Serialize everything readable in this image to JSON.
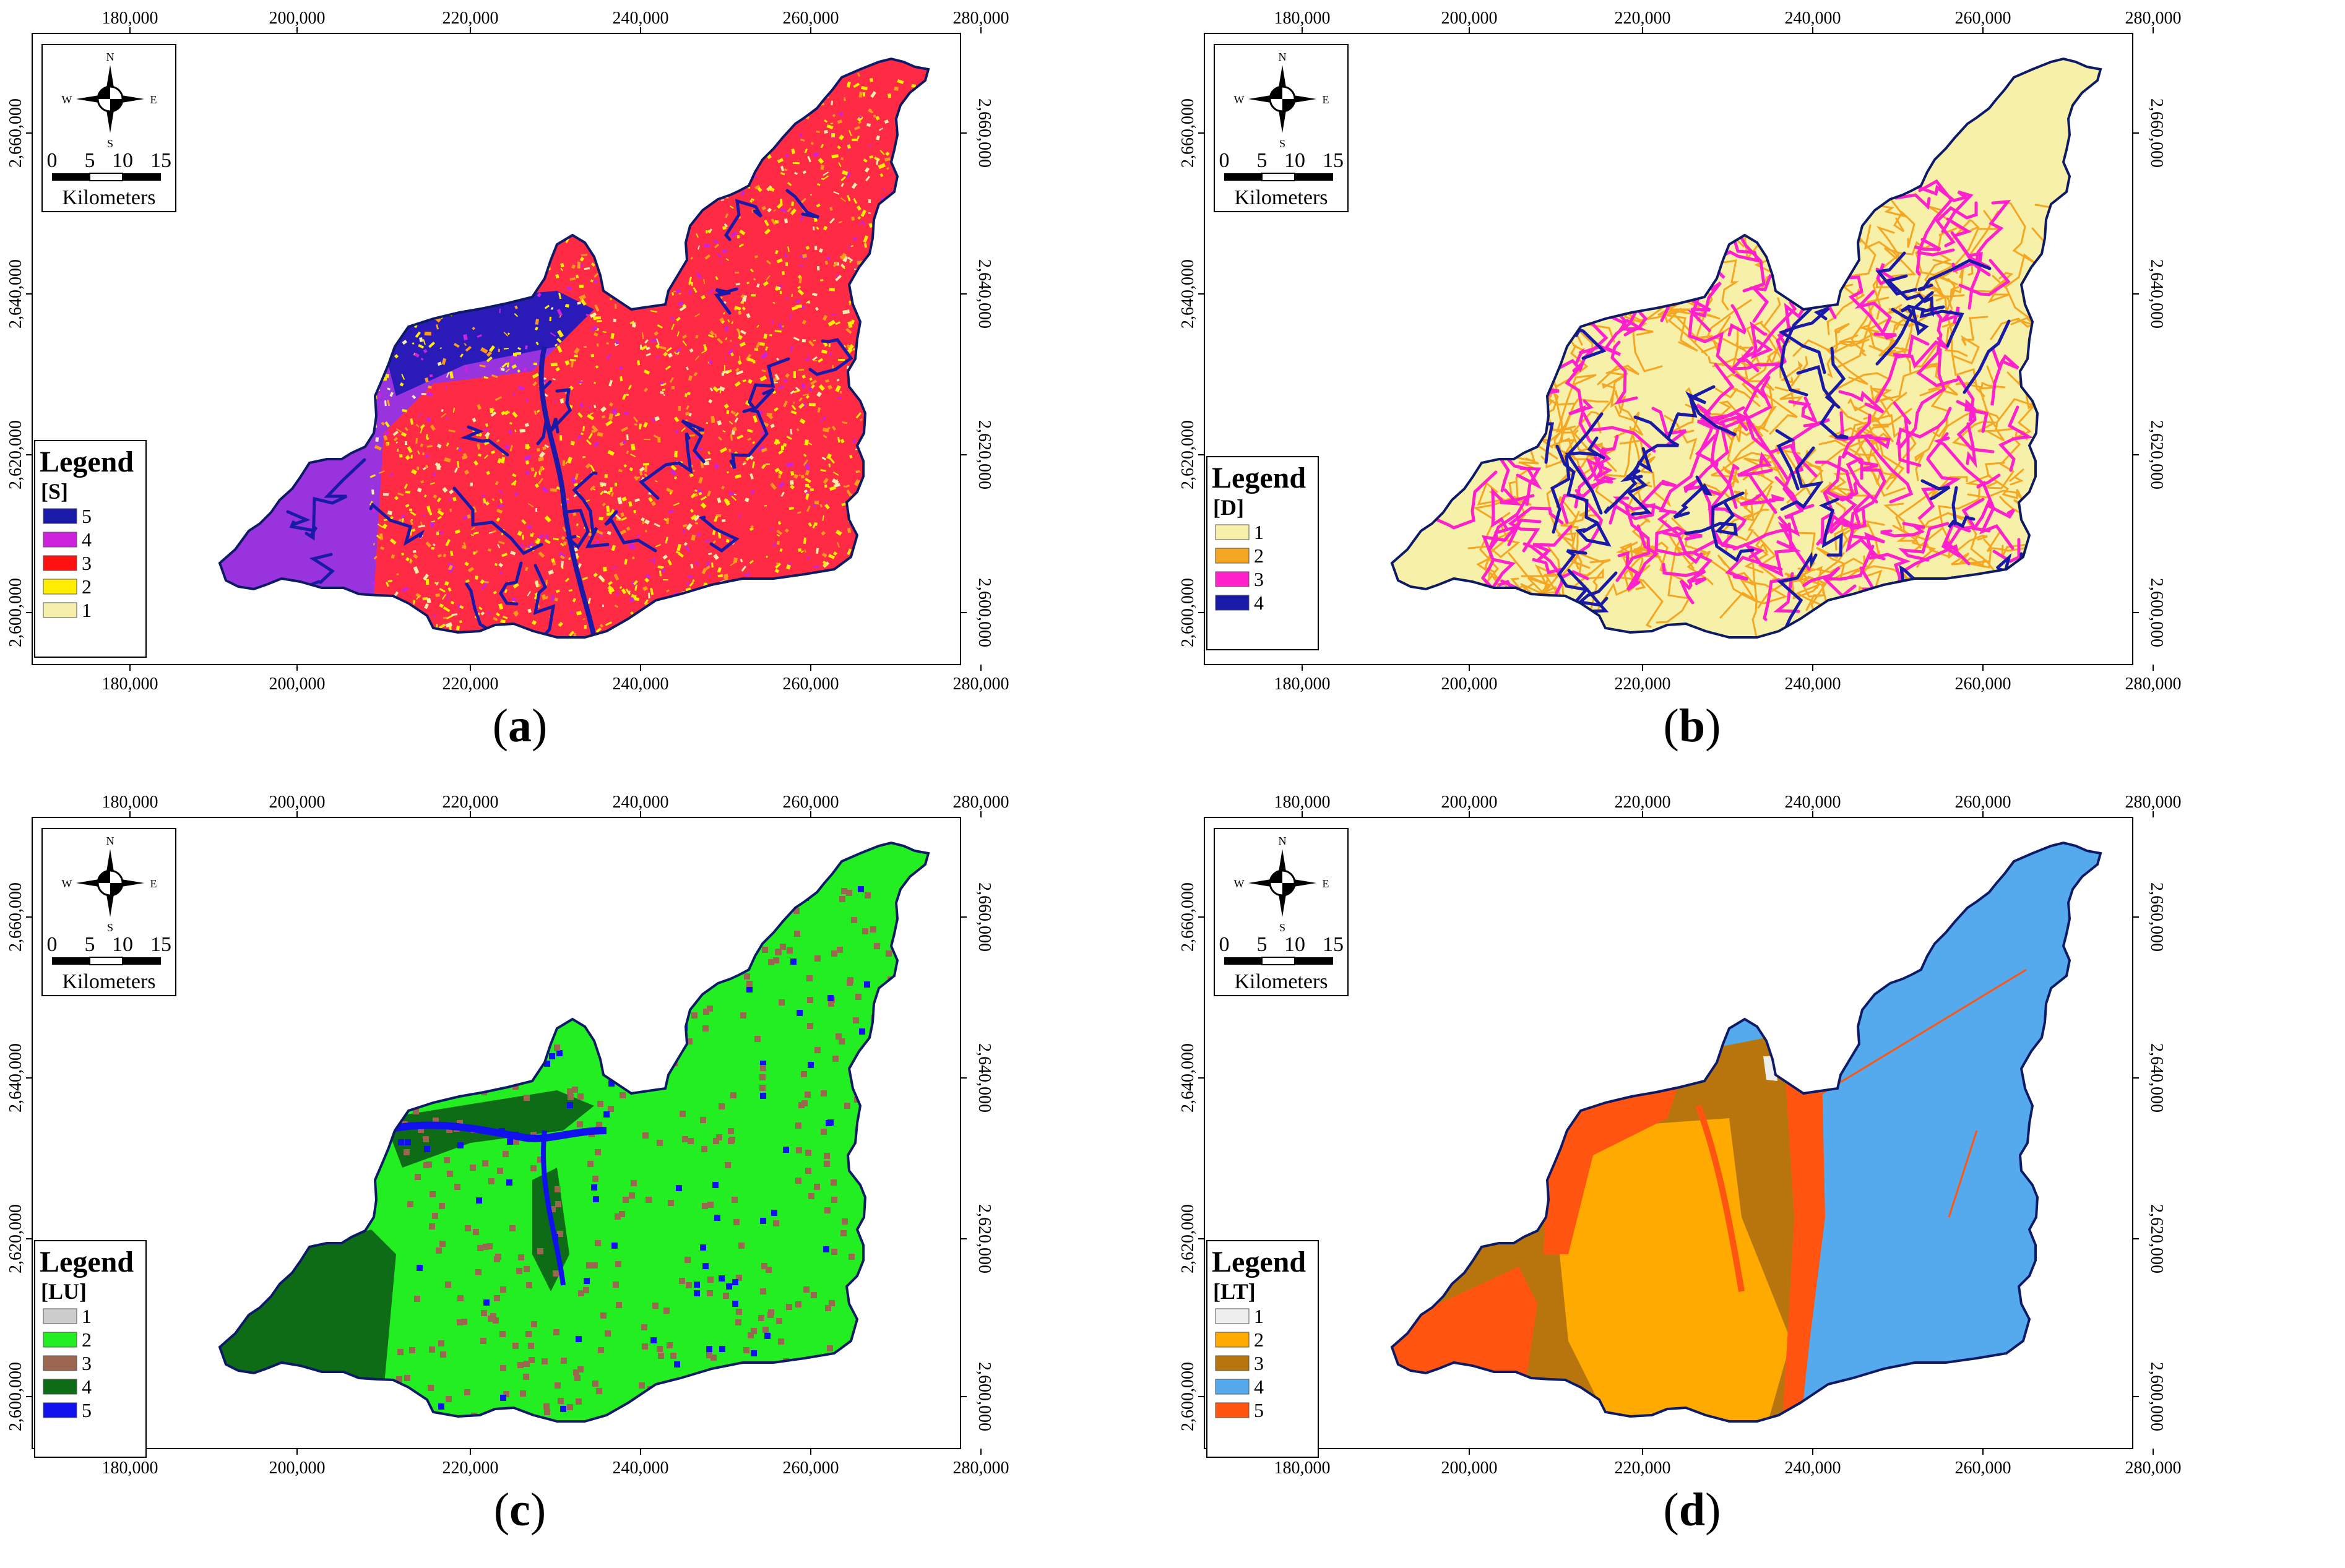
{
  "figure": {
    "axis_ticks_x": [
      "180,000",
      "200,000",
      "220,000",
      "240,000",
      "260,000",
      "280,000"
    ],
    "axis_ticks_y": [
      "2,600,000",
      "2,620,000",
      "2,640,000",
      "2,660,000"
    ],
    "compass": {
      "n": "N",
      "s": "S",
      "e": "E",
      "w": "W"
    },
    "scale_bar": {
      "labels": [
        "0",
        "5",
        "10",
        "15"
      ],
      "unit": "Kilometers"
    },
    "legend_title": "Legend"
  },
  "panels": [
    {
      "id": "a",
      "caption_letter": "a",
      "legend_sub": "[S]",
      "legend_items": [
        {
          "label": "5",
          "color": "#1a1aa8"
        },
        {
          "label": "4",
          "color": "#cc22dd"
        },
        {
          "label": "3",
          "color": "#ff1111"
        },
        {
          "label": "2",
          "color": "#ffee00"
        },
        {
          "label": "1",
          "color": "#f5eeaa"
        }
      ]
    },
    {
      "id": "b",
      "caption_letter": "b",
      "legend_sub": "[D]",
      "legend_items": [
        {
          "label": "1",
          "color": "#f7f0a8"
        },
        {
          "label": "2",
          "color": "#f5a623"
        },
        {
          "label": "3",
          "color": "#ff22cc"
        },
        {
          "label": "4",
          "color": "#1a1aa8"
        }
      ]
    },
    {
      "id": "c",
      "caption_letter": "c",
      "legend_sub": "[LU]",
      "legend_items": [
        {
          "label": "1",
          "color": "#cccccc"
        },
        {
          "label": "2",
          "color": "#22ee22"
        },
        {
          "label": "3",
          "color": "#9a6650"
        },
        {
          "label": "4",
          "color": "#0e6b16"
        },
        {
          "label": "5",
          "color": "#1111ee"
        }
      ]
    },
    {
      "id": "d",
      "caption_letter": "d",
      "legend_sub": "[LT]",
      "legend_items": [
        {
          "label": "1",
          "color": "#eeeeee"
        },
        {
          "label": "2",
          "color": "#ffaa00"
        },
        {
          "label": "3",
          "color": "#b8750d"
        },
        {
          "label": "4",
          "color": "#55aaee"
        },
        {
          "label": "5",
          "color": "#ff5511"
        }
      ]
    }
  ]
}
